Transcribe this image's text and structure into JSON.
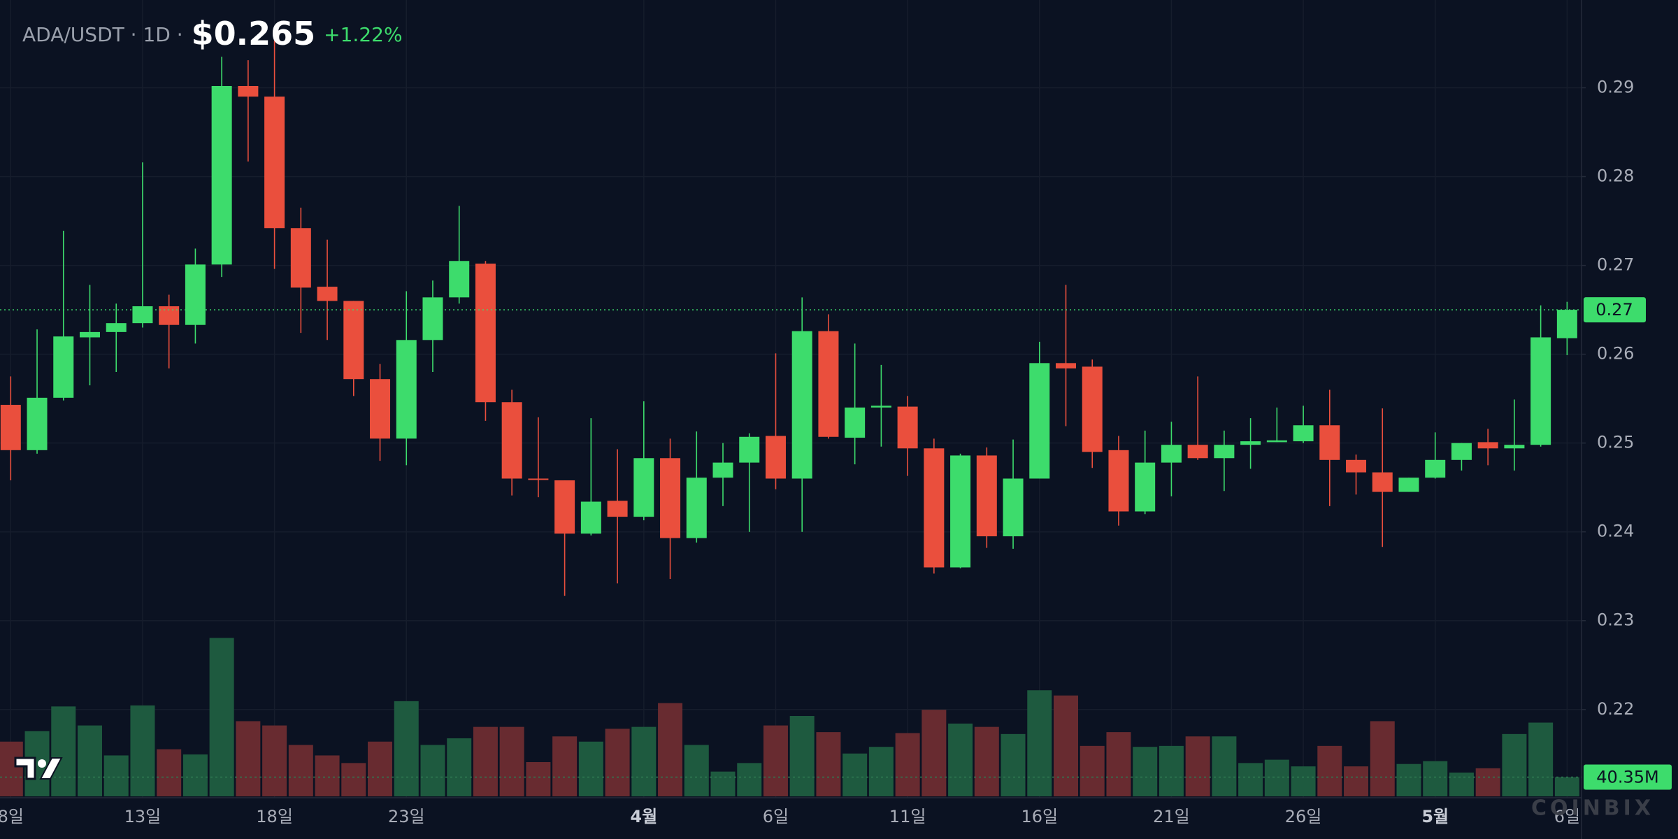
{
  "header": {
    "pair_label": "ADA/USDT · 1D ·",
    "price": "$0.265",
    "change": "+1.22%"
  },
  "watermark": "COINBIX",
  "chart_data": {
    "type": "candlestick",
    "categories": [
      "8일",
      null,
      null,
      null,
      null,
      "13일",
      null,
      null,
      null,
      null,
      "18일",
      null,
      null,
      null,
      null,
      "23일",
      null,
      null,
      null,
      null,
      null,
      null,
      null,
      null,
      "4월",
      null,
      null,
      null,
      null,
      "6일",
      null,
      null,
      null,
      null,
      "11일",
      null,
      null,
      null,
      null,
      "16일",
      null,
      null,
      null,
      null,
      "21일",
      null,
      null,
      null,
      null,
      "26일",
      null,
      null,
      null,
      null,
      "5월",
      null,
      null,
      null,
      null,
      "6일"
    ],
    "emphasized_categories": [
      24,
      54
    ],
    "open": [
      0.2543,
      0.2492,
      0.2551,
      0.2619,
      0.2625,
      0.2635,
      0.2654,
      0.2633,
      0.2701,
      0.2902,
      0.289,
      0.2742,
      0.2676,
      0.266,
      0.2572,
      0.2505,
      0.2616,
      0.2664,
      0.2702,
      0.2546,
      0.246,
      0.2458,
      0.2398,
      0.2435,
      0.2417,
      0.2483,
      0.2393,
      0.2461,
      0.2478,
      0.2508,
      0.246,
      0.2626,
      0.2506,
      0.254,
      0.2541,
      0.2494,
      0.236,
      0.2486,
      0.2395,
      0.246,
      0.259,
      0.2586,
      0.2492,
      0.2423,
      0.2478,
      0.2498,
      0.2483,
      0.2498,
      0.2501,
      0.2502,
      0.252,
      0.2481,
      0.2467,
      0.2445,
      0.2461,
      0.2481,
      0.2501,
      0.2494,
      0.2498,
      0.2618
    ],
    "high": [
      0.2575,
      0.2628,
      0.2739,
      0.2678,
      0.2657,
      0.2816,
      0.2667,
      0.2719,
      0.2935,
      0.2931,
      0.2953,
      0.2765,
      0.2729,
      0.266,
      0.2589,
      0.2671,
      0.2683,
      0.2767,
      0.2705,
      0.256,
      0.2529,
      0.2458,
      0.2528,
      0.2493,
      0.2547,
      0.2505,
      0.2513,
      0.25,
      0.2511,
      0.2601,
      0.2664,
      0.2645,
      0.2612,
      0.2588,
      0.2553,
      0.2505,
      0.2488,
      0.2495,
      0.2504,
      0.2614,
      0.2678,
      0.2594,
      0.2508,
      0.2514,
      0.2524,
      0.2575,
      0.2514,
      0.2528,
      0.254,
      0.2542,
      0.256,
      0.2487,
      0.2539,
      0.2461,
      0.2512,
      0.25,
      0.2516,
      0.2549,
      0.2655,
      0.2659
    ],
    "low": [
      0.2458,
      0.2488,
      0.2548,
      0.2565,
      0.258,
      0.263,
      0.2584,
      0.2612,
      0.2687,
      0.2817,
      0.2696,
      0.2624,
      0.2616,
      0.2553,
      0.248,
      0.2475,
      0.258,
      0.2657,
      0.2525,
      0.2441,
      0.2439,
      0.2328,
      0.2396,
      0.2342,
      0.2413,
      0.2347,
      0.2388,
      0.2429,
      0.24,
      0.2448,
      0.24,
      0.2505,
      0.2476,
      0.2496,
      0.2463,
      0.2353,
      0.2359,
      0.2382,
      0.2381,
      0.246,
      0.2519,
      0.2472,
      0.2407,
      0.242,
      0.244,
      0.2481,
      0.2446,
      0.2471,
      0.2501,
      0.25,
      0.2429,
      0.2442,
      0.2383,
      0.2445,
      0.246,
      0.2469,
      0.2475,
      0.2469,
      0.2496,
      0.2599
    ],
    "close": [
      0.2492,
      0.2551,
      0.262,
      0.2625,
      0.2635,
      0.2654,
      0.2633,
      0.2701,
      0.2902,
      0.289,
      0.2742,
      0.2675,
      0.266,
      0.2572,
      0.2505,
      0.2616,
      0.2664,
      0.2705,
      0.2546,
      0.246,
      0.2459,
      0.2398,
      0.2434,
      0.2417,
      0.2483,
      0.2393,
      0.2461,
      0.2478,
      0.2507,
      0.246,
      0.2626,
      0.2507,
      0.254,
      0.2542,
      0.2494,
      0.236,
      0.2486,
      0.2395,
      0.246,
      0.259,
      0.2584,
      0.249,
      0.2423,
      0.2478,
      0.2498,
      0.2483,
      0.2498,
      0.2502,
      0.2503,
      0.252,
      0.2481,
      0.2467,
      0.2445,
      0.2461,
      0.2481,
      0.25,
      0.2494,
      0.2498,
      0.2619,
      0.265
    ],
    "volume": [
      115,
      137,
      189,
      149,
      86,
      191,
      99,
      88,
      333,
      158,
      149,
      108,
      86,
      70,
      115,
      200,
      108,
      122,
      146,
      146,
      72,
      126,
      115,
      142,
      146,
      196,
      108,
      52,
      70,
      149,
      169,
      135,
      90,
      104,
      133,
      182,
      153,
      146,
      131,
      223,
      212,
      106,
      135,
      104,
      106,
      126,
      126,
      70,
      77,
      63,
      106,
      63,
      158,
      68,
      74,
      50,
      59,
      131,
      155,
      40.35
    ],
    "ylim": [
      0.21,
      0.3
    ],
    "yticks": [
      0.29,
      0.28,
      0.27,
      0.26,
      0.25,
      0.24,
      0.23,
      0.22
    ],
    "volume_lim": [
      0,
      360
    ],
    "current_price": {
      "value": 0.265,
      "label": "0.27"
    },
    "current_volume": {
      "value": 40.35,
      "label": "40.35M"
    },
    "grid": true,
    "up_color": "#3ddc6c",
    "down_color": "#ea4f3d",
    "volume_up_color": "#1e5a3f",
    "volume_down_color": "#682b30"
  }
}
